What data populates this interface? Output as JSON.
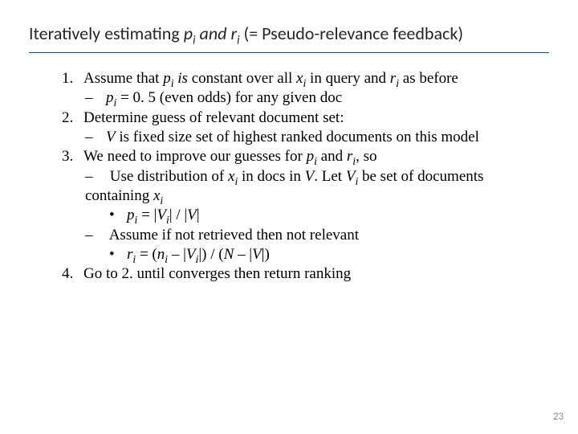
{
  "title": {
    "prefix": "Iteratively estimating ",
    "p": "p",
    "i1": "i",
    "and": " and ",
    "r": "r",
    "i2": "i",
    "suffix": " (= Pseudo-relevance feedback)",
    "color": "#262626",
    "fontsize_pt": 16,
    "border_color": "#1f497d"
  },
  "body": {
    "fontsize_pt": 14,
    "color": "#000000"
  },
  "items": {
    "one": {
      "a": "Assume that ",
      "b": "p",
      "bi": "i",
      "c": " is",
      "d": " constant over all ",
      "e": "x",
      "ei": "i",
      "f": "  in query and ",
      "g": "r",
      "gi": "i",
      "h": " as before",
      "dash1a": "p",
      "dash1ai": "i",
      "dash1b": " = 0. 5 (even odds) for any given doc"
    },
    "two": {
      "a": "Determine guess of relevant document set:",
      "dash1a": "V",
      "dash1b": " is fixed size set of highest ranked documents on this model"
    },
    "three": {
      "a": "We need to improve our guesses for ",
      "b": "p",
      "bi": "i",
      "c": " and ",
      "d": "r",
      "di": "i",
      "e": ", so",
      "dash1a": "Use distribution of ",
      "dash1b": "x",
      "dash1bi": "i",
      "dash1c": " in docs in ",
      "dash1d": "V",
      "dash1e": ". Let ",
      "dash1f": "V",
      "dash1fi": "i",
      "dash1g": " be set of documents containing ",
      "dash1h": "x",
      "dash1hi": "i",
      "bul1a": "p",
      "bul1ai": "i",
      "bul1b": " = |",
      "bul1c": "V",
      "bul1ci": "i",
      "bul1d": "| / |",
      "bul1e": "V",
      "bul1f": "|",
      "dash2a": "Assume if not retrieved then not relevant",
      "bul2a": "r",
      "bul2ai": "i",
      "bul2b": "  = (",
      "bul2c": "n",
      "bul2ci": "i",
      "bul2d": " – |",
      "bul2e": "V",
      "bul2ei": "i",
      "bul2f": "|) / (",
      "bul2g": "N",
      "bul2h": " – |",
      "bul2i": "V",
      "bul2j": "|)"
    },
    "four": {
      "a": "Go to 2. until converges then return ranking"
    }
  },
  "page_number": "23",
  "background_color": "#ffffff"
}
